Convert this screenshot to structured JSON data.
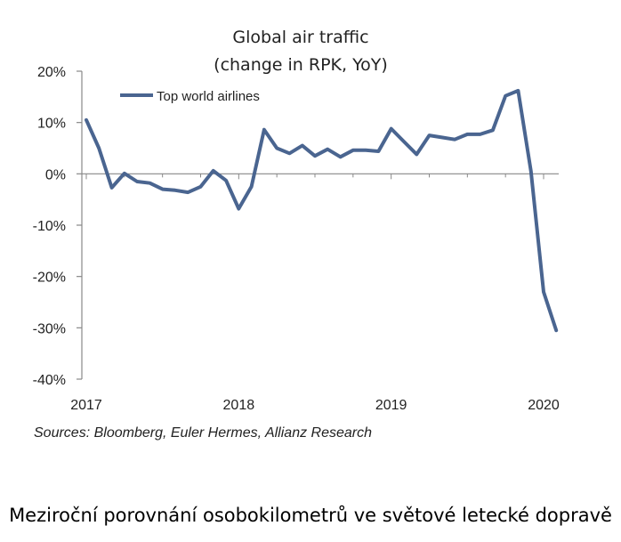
{
  "chart_data": {
    "type": "line",
    "title": "Global air traffic",
    "subtitle": "(change in RPK, YoY)",
    "xlabel": "",
    "ylabel": "",
    "ylim": [
      -40,
      20
    ],
    "yticks": [
      20,
      10,
      0,
      -10,
      -20,
      -30,
      -40
    ],
    "ytick_labels": [
      "20%",
      "10%",
      "0%",
      "-10%",
      "-20%",
      "-30%",
      "-40%"
    ],
    "xlim": [
      2017,
      2020.1
    ],
    "xticks": [
      2017,
      2018,
      2019,
      2020
    ],
    "xtick_labels": [
      "2017",
      "2018",
      "2019",
      "2020"
    ],
    "grid": false,
    "legend_position": "top-left",
    "series": [
      {
        "name": "Top world airlines",
        "color": "#4a6590",
        "x": [
          2017.0,
          2017.083,
          2017.167,
          2017.25,
          2017.333,
          2017.417,
          2017.5,
          2017.583,
          2017.667,
          2017.75,
          2017.833,
          2017.917,
          2018.0,
          2018.083,
          2018.167,
          2018.25,
          2018.333,
          2018.417,
          2018.5,
          2018.583,
          2018.667,
          2018.75,
          2018.833,
          2018.917,
          2019.0,
          2019.083,
          2019.167,
          2019.25,
          2019.333,
          2019.417,
          2019.5,
          2019.583,
          2019.667,
          2019.75,
          2019.833,
          2019.917,
          2020.0,
          2020.083
        ],
        "values": [
          10.5,
          5.0,
          -2.7,
          0.1,
          -1.5,
          -1.8,
          -3.0,
          -3.2,
          -3.6,
          -2.5,
          0.6,
          -1.3,
          -6.8,
          -2.5,
          8.6,
          5.0,
          4.0,
          5.5,
          3.5,
          4.8,
          3.3,
          4.6,
          4.6,
          4.4,
          8.8,
          6.3,
          3.8,
          7.5,
          7.1,
          6.7,
          7.7,
          7.7,
          8.5,
          15.2,
          16.2,
          0.5,
          -23.0,
          -30.5
        ]
      }
    ],
    "source": "Sources: Bloomberg, Euler Hermes, Allianz Research"
  },
  "caption": "Meziroční porovnání osobokilometrů ve světové letecké dopravě"
}
